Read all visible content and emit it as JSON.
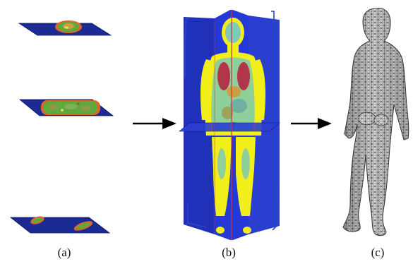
{
  "panels": [
    {
      "id": "a",
      "label": "(a)"
    },
    {
      "id": "b",
      "label": "(b)"
    },
    {
      "id": "c",
      "label": "(c)"
    }
  ],
  "colors": {
    "slice_plane": "#1c2a94",
    "tissue_orange": "#d9692a",
    "tissue_green": "#5faa3a",
    "tissue_yellow": "#f2ee1a",
    "organ_red": "#b2364a",
    "volume_blue": "#2439d6",
    "frame_blue": "#2d43c9",
    "mesh_gray": "#d6d6d6",
    "mesh_line": "#2e2e2e",
    "arrow": "#000000"
  }
}
